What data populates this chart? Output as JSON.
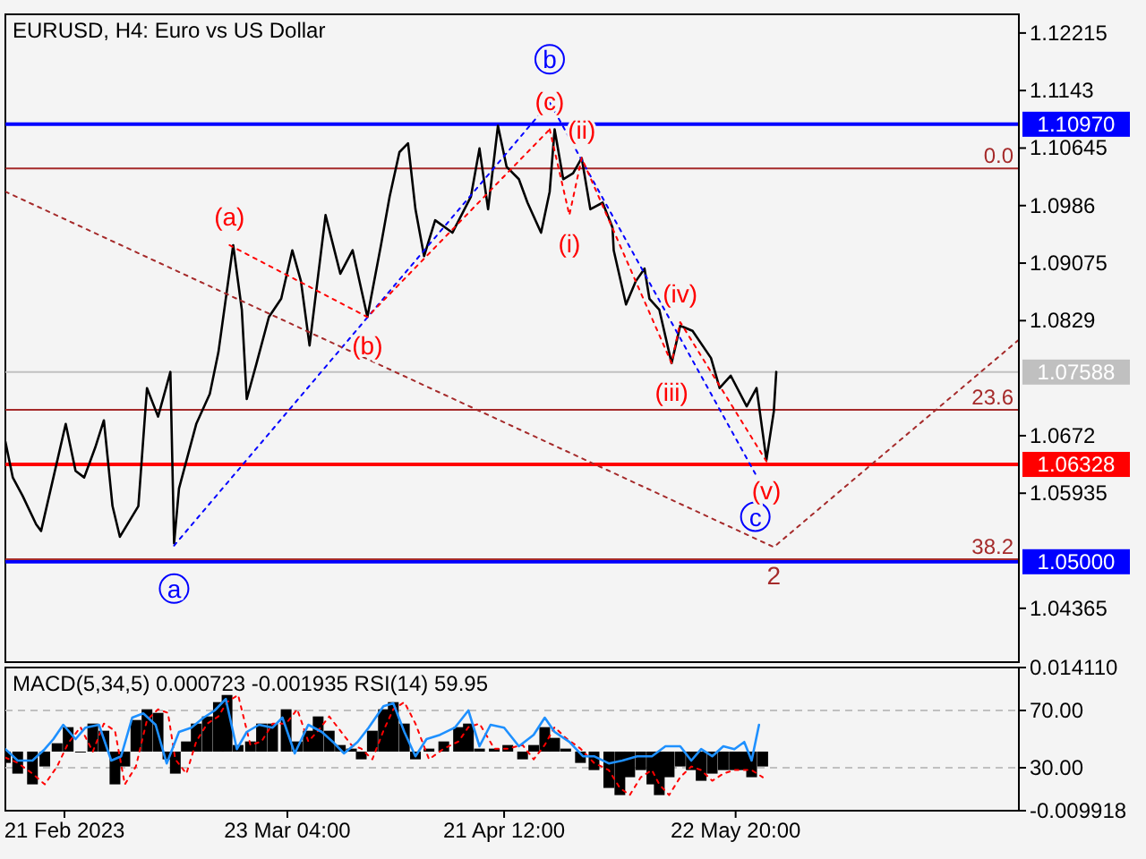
{
  "chart_data": [
    {
      "type": "line",
      "title": "EURUSD, H4:  Euro vs US Dollar",
      "tick_labels": "y",
      "xlim": [
        "2023-02-13T00:00",
        "2023-06-30T04:00"
      ],
      "ylim": [
        1.0363,
        1.1247
      ],
      "yticks": [
        1.12215,
        1.1143,
        1.10645,
        1.0986,
        1.09075,
        1.0829,
        1.0672,
        1.05935,
        1.04365
      ],
      "y2lim": [
        48.27,
        -15.06
      ],
      "y2ticks": [
        {
          "value": 0,
          "label": "0.0"
        },
        23.6,
        38.2
      ],
      "x": [
        "2023-02-13T00:00",
        "2023-02-14T00:00",
        "2023-02-15T08:00",
        "2023-02-17T04:00",
        "2023-02-17T20:00",
        "2023-02-19T12:00",
        "2023-02-21T04:00",
        "2023-02-22T12:00",
        "2023-02-23T16:00",
        "2023-02-25T04:00",
        "2023-02-26T08:00",
        "2023-02-27T12:00",
        "2023-02-28T12:00",
        "2023-03-03T00:00",
        "2023-03-04T04:00",
        "2023-03-05T16:00",
        "2023-03-07T08:00",
        "2023-03-07T20:00",
        "2023-03-08T12:00",
        "2023-03-10T20:00",
        "2023-03-12T16:00",
        "2023-03-13T20:00",
        "2023-03-15T20:00",
        "2023-03-17T00:00",
        "2023-03-17T16:00",
        "2023-03-19T00:00",
        "2023-03-20T16:00",
        "2023-03-22T08:00",
        "2023-03-23T20:00",
        "2023-03-25T00:00",
        "2023-03-26T04:00",
        "2023-03-28T08:00",
        "2023-03-30T08:00",
        "2023-04-01T00:00",
        "2023-04-03T00:00",
        "2023-04-04T20:00",
        "2023-04-06T00:00",
        "2023-04-07T08:00",
        "2023-04-08T12:00",
        "2023-04-09T12:00",
        "2023-04-10T16:00",
        "2023-04-12T04:00",
        "2023-04-14T12:00",
        "2023-04-17T00:00",
        "2023-04-18T04:00",
        "2023-04-19T08:00",
        "2023-04-20T16:00",
        "2023-04-21T20:00",
        "2023-04-23T12:00",
        "2023-04-24T16:00",
        "2023-04-26T12:00",
        "2023-04-27T16:00",
        "2023-04-28T08:00",
        "2023-04-29T12:00",
        "2023-04-30T20:00",
        "2023-05-02T00:00",
        "2023-05-03T04:00",
        "2023-05-04T20:00",
        "2023-05-06T04:00",
        "2023-05-06T08:00",
        "2023-05-08T00:00",
        "2023-05-09T08:00",
        "2023-05-10T12:00",
        "2023-05-11T04:00",
        "2023-05-12T12:00",
        "2023-05-14T04:00",
        "2023-05-15T08:00",
        "2023-05-17T00:00",
        "2023-05-19T12:00",
        "2023-05-20T16:00",
        "2023-05-22T04:00",
        "2023-05-24T08:00",
        "2023-05-25T16:00",
        "2023-05-27T00:00",
        "2023-05-28T00:00",
        "2023-05-28T08:00"
      ],
      "series": [
        {
          "color": "#000000",
          "values": [
            1.0664,
            1.0615,
            1.059,
            1.0551,
            1.0542,
            1.0615,
            1.0688,
            1.0624,
            1.0615,
            1.0656,
            1.0693,
            1.0576,
            1.0534,
            1.0576,
            1.0737,
            1.0698,
            1.0759,
            1.0525,
            1.06,
            1.0688,
            1.0729,
            1.0786,
            1.0932,
            1.0844,
            1.0722,
            1.0771,
            1.0834,
            1.0859,
            1.0925,
            1.0883,
            1.0795,
            1.0973,
            1.0893,
            1.0925,
            1.0834,
            1.0932,
            1.0998,
            1.1059,
            1.1071,
            1.0981,
            1.0917,
            1.0966,
            1.0949,
            1.0998,
            1.1064,
            1.0981,
            1.1095,
            1.1039,
            1.1022,
            1.099,
            1.0949,
            1.1005,
            1.109,
            1.1022,
            1.103,
            1.1051,
            1.0981,
            1.099,
            1.0956,
            1.0925,
            1.0851,
            1.0883,
            1.09,
            1.0859,
            1.0844,
            1.0771,
            1.0822,
            1.0815,
            1.0778,
            1.0737,
            1.0754,
            1.0712,
            1.0737,
            1.0639,
            1.0705,
            1.0759
          ]
        },
        {
          "color": "#0000ff",
          "line_style": "dotted",
          "x": [
            "2023-03-07T20:00",
            "2023-04-27T16:00",
            "2023-05-25T12:00"
          ],
          "values": [
            1.0522,
            1.1127,
            1.062
          ]
        },
        {
          "color": "#ff0000",
          "line_style": "dotted",
          "x": [
            "2023-03-15T08:00",
            "2023-04-03T00:00",
            "2023-04-27T16:00"
          ],
          "values": [
            1.0932,
            1.0834,
            1.109
          ]
        },
        {
          "color": "#ff0000",
          "line_style": "dotted",
          "x": [
            "2023-04-27T16:00",
            "2023-04-30T08:00",
            "2023-05-02T00:00",
            "2023-05-14T04:00",
            "2023-05-15T08:00",
            "2023-05-27T00:00"
          ],
          "values": [
            1.109,
            1.0973,
            1.1051,
            1.0771,
            1.0827,
            1.0637
          ]
        },
        {
          "color": "#a52a2a",
          "line_style": "dotted",
          "x": [
            "2023-02-13T00:00",
            "2023-05-28T00:00",
            "2023-06-30T04:00"
          ],
          "values": [
            1.1005,
            1.052,
            1.0803
          ]
        }
      ],
      "ref_lines": [
        {
          "axis": "y",
          "value": 1.1097,
          "label": "1.10970",
          "color": "#0000ff"
        },
        {
          "axis": "y",
          "value": 1.07588,
          "label": "1.07588",
          "color": "#c0c0c0"
        },
        {
          "axis": "y",
          "value": 1.06328,
          "label": "1.06328",
          "color": "#ff0000"
        },
        {
          "axis": "y",
          "value": 1.05,
          "label": "1.05000",
          "color": "#0000ff"
        },
        {
          "axis": "y2",
          "value": 0,
          "color": "#a52a2a"
        },
        {
          "axis": "y2",
          "value": 23.6,
          "color": "#a52a2a"
        },
        {
          "axis": "y2",
          "value": 38.2,
          "color": "#a52a2a"
        }
      ],
      "annotations": [
        {
          "text": "a",
          "x": "2023-03-07T20:00",
          "y": 1.0522
        },
        {
          "text": "b",
          "x": "2023-04-27T16:00",
          "y": 1.1127
        },
        {
          "text": "c",
          "x": "2023-05-25T12:00",
          "y": 1.062
        },
        {
          "text": "(a)",
          "x": "2023-03-15T08:00",
          "y": 1.0932
        },
        {
          "text": "(b)",
          "x": "2023-04-03T00:00",
          "y": 1.0834
        },
        {
          "text": "(c)",
          "x": "2023-04-27T16:00",
          "y": 1.109
        },
        {
          "text": "(i)",
          "x": "2023-04-30T08:00",
          "y": 1.0973
        },
        {
          "text": "(ii)",
          "x": "2023-05-02T00:00",
          "y": 1.1051
        },
        {
          "text": "(iii)",
          "x": "2023-05-14T04:00",
          "y": 1.0771
        },
        {
          "text": "(iv)",
          "x": "2023-05-15T08:00",
          "y": 1.0827
        },
        {
          "text": "(v)",
          "x": "2023-05-27T00:00",
          "y": 1.0637
        },
        {
          "text": "2",
          "x": "2023-05-28T00:00",
          "y": 1.052
        }
      ]
    },
    {
      "type": "bar",
      "title": "MACD(5,34,5) 0.000723 -0.001935 RSI(14) 59.95",
      "xlim": [
        "2023-02-13T00:00",
        "2023-06-30T04:00"
      ],
      "ylim": [
        -0.009918,
        0.01411
      ],
      "xticks": [
        {
          "value": "2023-02-21T00:00",
          "label": "21 Feb 2023"
        },
        {
          "value": "2023-03-23T04:00",
          "label": "23 Mar 04:00"
        },
        {
          "value": "2023-04-21T12:00",
          "label": "21 Apr 12:00"
        },
        {
          "value": "2023-05-22T20:00",
          "label": "22 May 20:00"
        }
      ],
      "yticks": [
        {
          "value": 0.01411,
          "label": "0.014110"
        },
        {
          "value": -0.009918,
          "label": "-0.009918"
        }
      ],
      "y2lim": [
        0,
        100
      ],
      "y2ticks": [
        {
          "value": 70,
          "label": "70.00"
        },
        {
          "value": 30,
          "label": "30.00"
        }
      ],
      "x": [
        "2023-02-13T00:00",
        "2023-02-14T16:00",
        "2023-02-16T16:00",
        "2023-02-18T08:00",
        "2023-02-20T00:00",
        "2023-02-21T12:00",
        "2023-02-23T04:00",
        "2023-02-24T20:00",
        "2023-02-26T08:00",
        "2023-02-27T20:00",
        "2023-03-01T04:00",
        "2023-03-02T16:00",
        "2023-03-04T04:00",
        "2023-03-05T16:00",
        "2023-03-07T00:00",
        "2023-03-08T00:00",
        "2023-03-09T12:00",
        "2023-03-10T20:00",
        "2023-03-12T08:00",
        "2023-03-13T20:00",
        "2023-03-15T00:00",
        "2023-03-16T12:00",
        "2023-03-18T04:00",
        "2023-03-19T16:00",
        "2023-03-21T04:00",
        "2023-03-23T00:00",
        "2023-03-24T12:00",
        "2023-03-26T00:00",
        "2023-03-27T08:00",
        "2023-03-28T20:00",
        "2023-03-30T08:00",
        "2023-03-31T20:00",
        "2023-04-02T04:00",
        "2023-04-03T16:00",
        "2023-04-05T04:00",
        "2023-04-06T12:00",
        "2023-04-08T00:00",
        "2023-04-09T12:00",
        "2023-04-11T08:00",
        "2023-04-13T08:00",
        "2023-04-15T08:00",
        "2023-04-16T16:00",
        "2023-04-18T04:00",
        "2023-04-20T04:00",
        "2023-04-22T00:00",
        "2023-04-24T00:00",
        "2023-04-25T12:00",
        "2023-04-27T00:00",
        "2023-04-28T08:00",
        "2023-04-29T20:00",
        "2023-05-01T20:00",
        "2023-05-03T16:00",
        "2023-05-05T16:00",
        "2023-05-07T04:00",
        "2023-05-08T12:00",
        "2023-05-10T00:00",
        "2023-05-11T12:00",
        "2023-05-12T12:00",
        "2023-05-13T20:00",
        "2023-05-15T08:00",
        "2023-05-16T20:00",
        "2023-05-18T04:00",
        "2023-05-19T16:00",
        "2023-05-21T04:00",
        "2023-05-22T16:00",
        "2023-05-24T00:00",
        "2023-05-25T00:00",
        "2023-05-26T12:00"
      ],
      "series": [
        {
          "color": "#000000",
          "values": [
            -0.0019,
            -0.0037,
            -0.0055,
            -0.0025,
            0.0014,
            0.0041,
            0,
            0.0047,
            0.0035,
            -0.0055,
            -0.0025,
            0.0053,
            0.0071,
            0.0065,
            -0.0013,
            -0.0037,
            0.0017,
            0.0047,
            0.0059,
            0.0083,
            0.0095,
            0.0011,
            0.0017,
            0.0047,
            0.0047,
            0.0071,
            0.0017,
            0.0035,
            0.0059,
            0.0035,
            0.0011,
            0.0005,
            -0.0013,
            0.0035,
            0.0071,
            0.0083,
            0.0047,
            -0.0013,
            0.0005,
            0.0017,
            0.0041,
            0.0047,
            0.0005,
            0.0005,
            0.0011,
            -0.0013,
            0.0011,
            0.0041,
            0.0023,
            0.0005,
            -0.0019,
            -0.0031,
            -0.0061,
            -0.0073,
            -0.0043,
            -0.0031,
            -0.0055,
            -0.0073,
            -0.0043,
            -0.0025,
            -0.0031,
            -0.0049,
            -0.0037,
            -0.0031,
            -0.0031,
            -0.0031,
            -0.0043,
            -0.0025
          ]
        },
        {
          "type": "line",
          "color": "#ff0000",
          "line_style": "dotted",
          "values": [
            -0.001,
            -0.0019,
            -0.0037,
            -0.0055,
            -0.0025,
            0.0014,
            0.0041,
            0,
            0.0047,
            0.0035,
            -0.0055,
            -0.0025,
            0.0053,
            0.0071,
            0.0065,
            -0.0013,
            -0.0037,
            0.0017,
            0.0047,
            0.0059,
            0.0083,
            0.0095,
            0.0011,
            0.0017,
            0.0047,
            0.0047,
            0.0071,
            0.0017,
            0.0035,
            0.0059,
            0.0035,
            0.0011,
            0.0005,
            -0.0013,
            0.0035,
            0.0071,
            0.0083,
            0.0047,
            -0.0013,
            0.0005,
            0.0017,
            0.0041,
            0.0047,
            0.0005,
            0.0005,
            0.0011,
            -0.0013,
            0.0011,
            0.0041,
            0.0023,
            0.0005,
            -0.0019,
            -0.0031,
            -0.0061,
            -0.0073,
            -0.0043,
            -0.0031,
            -0.0055,
            -0.0073,
            -0.0043,
            -0.0025,
            -0.0031,
            -0.0049,
            -0.0037,
            -0.0031,
            -0.0031,
            -0.0031,
            -0.0043
          ]
        },
        {
          "type": "line",
          "color": "#1e90ff",
          "axis": "y2",
          "x": [
            "2023-02-13T00:00",
            "2023-02-14T16:00",
            "2023-02-16T16:00",
            "2023-02-18T08:00",
            "2023-02-19T12:00",
            "2023-02-20T20:00",
            "2023-02-22T12:00",
            "2023-02-23T20:00",
            "2023-02-25T16:00",
            "2023-02-27T08:00",
            "2023-02-28T16:00",
            "2023-03-02T04:00",
            "2023-03-03T16:00",
            "2023-03-05T08:00",
            "2023-03-06T20:00",
            "2023-03-08T12:00",
            "2023-03-10T04:00",
            "2023-03-11T20:00",
            "2023-03-13T08:00",
            "2023-03-14T20:00",
            "2023-03-16T08:00",
            "2023-03-17T16:00",
            "2023-03-19T08:00",
            "2023-03-21T04:00",
            "2023-03-22T12:00",
            "2023-03-24T04:00",
            "2023-03-26T00:00",
            "2023-03-27T20:00",
            "2023-03-29T08:00",
            "2023-03-30T20:00",
            "2023-04-01T16:00",
            "2023-04-03T04:00",
            "2023-04-05T04:00",
            "2023-04-06T12:00",
            "2023-04-08T00:00",
            "2023-04-09T12:00",
            "2023-04-11T00:00",
            "2023-04-12T20:00",
            "2023-04-14T20:00",
            "2023-04-16T16:00",
            "2023-04-18T04:00",
            "2023-04-19T16:00",
            "2023-04-21T12:00",
            "2023-04-23T12:00",
            "2023-04-25T12:00",
            "2023-04-27T00:00",
            "2023-04-28T08:00",
            "2023-04-30T08:00",
            "2023-05-02T04:00",
            "2023-05-03T16:00",
            "2023-05-05T16:00",
            "2023-05-07T12:00",
            "2023-05-09T12:00",
            "2023-05-11T12:00",
            "2023-05-13T08:00",
            "2023-05-15T08:00",
            "2023-05-16T20:00",
            "2023-05-18T04:00",
            "2023-05-19T16:00",
            "2023-05-21T04:00",
            "2023-05-22T16:00",
            "2023-05-24T00:00",
            "2023-05-25T00:00",
            "2023-05-26T00:00"
          ],
          "values": [
            43,
            35,
            35,
            43,
            50,
            60,
            50,
            58,
            60,
            35,
            38,
            65,
            68,
            60,
            33,
            55,
            58,
            65,
            70,
            78,
            43,
            55,
            60,
            58,
            65,
            40,
            60,
            55,
            48,
            40,
            48,
            58,
            73,
            75,
            55,
            38,
            50,
            53,
            58,
            70,
            45,
            60,
            58,
            45,
            53,
            65,
            55,
            48,
            38,
            38,
            33,
            35,
            38,
            38,
            45,
            45,
            35,
            43,
            38,
            45,
            43,
            48,
            35,
            60
          ]
        }
      ],
      "ref_lines": [
        {
          "axis": "y2",
          "value": 70,
          "color": "#c0c0c0",
          "line_style": "dashed"
        },
        {
          "axis": "y2",
          "value": 30,
          "color": "#c0c0c0",
          "line_style": "dashed"
        }
      ]
    }
  ]
}
